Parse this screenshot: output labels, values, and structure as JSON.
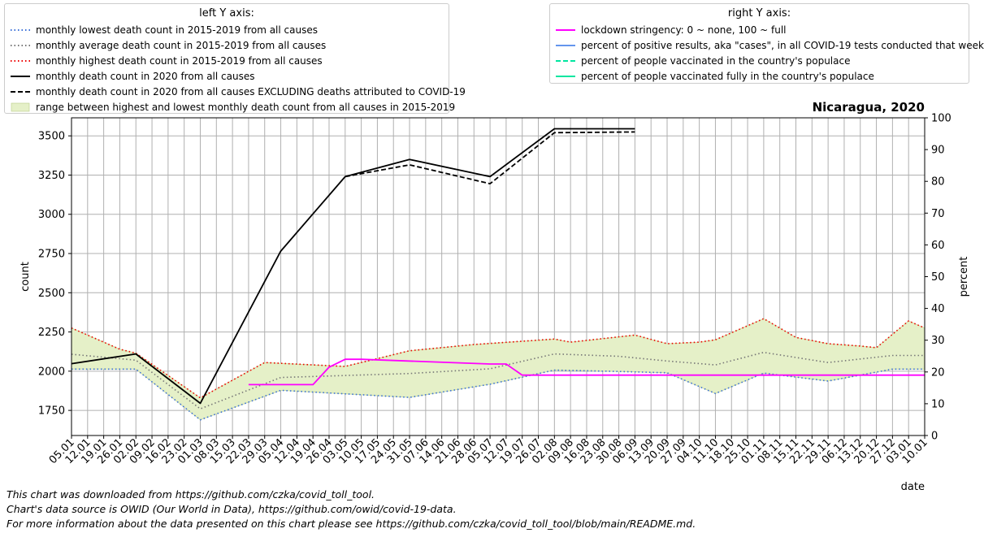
{
  "legend_left": {
    "title": "left Y axis:",
    "items": [
      {
        "label": "monthly lowest death count in 2015-2019 from all causes",
        "color": "#3a6fd8",
        "style": "dotted"
      },
      {
        "label": "monthly average death count in 2015-2019 from all causes",
        "color": "#777777",
        "style": "dotted"
      },
      {
        "label": "monthly highest death count in 2015-2019 from all causes",
        "color": "#ee0000",
        "style": "dotted"
      },
      {
        "label": "monthly death count in 2020 from all causes",
        "color": "#000000",
        "style": "solid"
      },
      {
        "label": "monthly death count in 2020 from all causes EXCLUDING deaths attributed to COVID-19",
        "color": "#000000",
        "style": "dashed"
      },
      {
        "label": "range between highest and lowest monthly death count from all causes in 2015-2019",
        "color": "#e5f0c8",
        "style": "fill"
      }
    ]
  },
  "legend_right": {
    "title": "right Y axis:",
    "items": [
      {
        "label": "lockdown stringency: 0 ~ none, 100 ~ full",
        "color": "#ff00ff",
        "style": "solid"
      },
      {
        "label": "percent of positive results, aka \"cases\", in all COVID-19 tests conducted that week",
        "color": "#6495ed",
        "style": "solid"
      },
      {
        "label": "percent of people vaccinated in the country's populace",
        "color": "#00e6a0",
        "style": "dashed"
      },
      {
        "label": "percent of people vaccinated fully in the country's populace",
        "color": "#00e6a0",
        "style": "solid"
      }
    ]
  },
  "chart_title": "Nicaragua, 2020",
  "footer": [
    "This chart was downloaded from https://github.com/czka/covid_toll_tool.",
    "Chart's data source is OWID (Our World in Data), https://github.com/owid/covid-19-data.",
    "For more information about the data presented on this chart please see https://github.com/czka/covid_toll_tool/blob/main/README.md."
  ],
  "chart_data": {
    "type": "line",
    "xlabel": "date",
    "ylabel_left": "count",
    "ylabel_right": "percent",
    "ylim_left": [
      1590,
      3615
    ],
    "ylim_right": [
      0,
      100
    ],
    "xlim": [
      0,
      53
    ],
    "x_ticks": [
      "05.01",
      "12.01",
      "19.01",
      "26.01",
      "02.02",
      "09.02",
      "16.02",
      "23.02",
      "01.03",
      "08.03",
      "15.03",
      "22.03",
      "29.03",
      "05.04",
      "12.04",
      "19.04",
      "26.04",
      "03.05",
      "10.05",
      "17.05",
      "24.05",
      "31.05",
      "07.06",
      "14.06",
      "21.06",
      "28.06",
      "05.07",
      "12.07",
      "19.07",
      "26.07",
      "02.08",
      "09.08",
      "16.08",
      "23.08",
      "30.08",
      "06.09",
      "13.09",
      "20.09",
      "27.09",
      "04.10",
      "11.10",
      "18.10",
      "25.10",
      "01.11",
      "08.11",
      "15.11",
      "22.11",
      "29.11",
      "06.12",
      "13.12",
      "20.12",
      "27.12",
      "03.01",
      "10.01"
    ],
    "y_ticks_left": [
      1750,
      2000,
      2250,
      2500,
      2750,
      3000,
      3250,
      3500
    ],
    "y_ticks_right": [
      0,
      10,
      20,
      30,
      40,
      50,
      60,
      70,
      80,
      90,
      100
    ],
    "grid": true,
    "series": [
      {
        "name": "monthly lowest death count in 2015-2019 from all causes",
        "axis": "left",
        "color": "#3a6fd8",
        "style": "dotted",
        "x": [
          0,
          4,
          8,
          13,
          21,
          26,
          30,
          34,
          37,
          40,
          43,
          47,
          51,
          53
        ],
        "y": [
          2013,
          2013,
          1690,
          1878,
          1833,
          1917,
          2007,
          1998,
          1990,
          1858,
          1988,
          1937,
          2013,
          2013
        ]
      },
      {
        "name": "monthly average death count in 2015-2019 from all causes",
        "axis": "left",
        "color": "#777777",
        "style": "dotted",
        "x": [
          0,
          4,
          8,
          13,
          21,
          26,
          30,
          34,
          37,
          40,
          43,
          47,
          51,
          53
        ],
        "y": [
          2108,
          2070,
          1760,
          1960,
          1985,
          2015,
          2110,
          2095,
          2065,
          2040,
          2120,
          2055,
          2100,
          2100
        ]
      },
      {
        "name": "monthly highest death count in 2015-2019 from all causes",
        "axis": "left",
        "color": "#ee0000",
        "style": "dotted",
        "x": [
          0,
          3,
          4,
          8,
          12,
          17,
          21,
          25,
          30,
          31,
          35,
          37,
          39,
          40,
          43,
          45,
          47,
          49,
          50,
          52,
          53
        ],
        "y": [
          2275,
          2140,
          2115,
          1830,
          2055,
          2030,
          2130,
          2170,
          2205,
          2185,
          2230,
          2175,
          2185,
          2200,
          2335,
          2215,
          2175,
          2160,
          2150,
          2320,
          2275
        ]
      },
      {
        "name": "monthly death count in 2020 from all causes",
        "axis": "left",
        "color": "#000000",
        "style": "solid",
        "x": [
          0,
          4,
          8,
          13,
          17,
          21,
          26,
          30,
          35
        ],
        "y": [
          2048,
          2110,
          1795,
          2765,
          3240,
          3350,
          3240,
          3545,
          3545
        ]
      },
      {
        "name": "monthly death count in 2020 from all causes EXCLUDING deaths attributed to COVID-19",
        "axis": "left",
        "color": "#000000",
        "style": "dashed",
        "x": [
          17,
          21,
          26,
          30,
          35
        ],
        "y": [
          3240,
          3315,
          3195,
          3520,
          3525
        ]
      },
      {
        "name": "lockdown stringency: 0 ~ none, 100 ~ full",
        "axis": "right",
        "color": "#ff00ff",
        "style": "solid",
        "x": [
          11,
          12,
          13,
          14,
          14.5,
          15,
          16,
          17,
          17.5,
          18,
          26,
          27,
          28,
          29,
          30,
          31,
          33,
          34,
          35,
          36,
          37,
          38,
          39,
          40,
          53
        ],
        "y": [
          16,
          16,
          16,
          16,
          16,
          16,
          21.5,
          24,
          24,
          24,
          22.5,
          22.5,
          19,
          19,
          19,
          19,
          19,
          19,
          19,
          19,
          19,
          19,
          19,
          19,
          19
        ]
      }
    ]
  }
}
